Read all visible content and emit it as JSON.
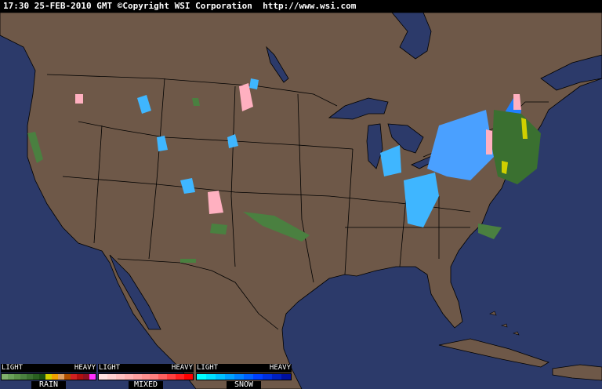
{
  "header": {
    "time": "17:30",
    "date": "25-FEB-2010",
    "zone": "GMT",
    "copyright": "©Copyright WSI Corporation",
    "url": "http://www.wsi.com"
  },
  "colors": {
    "ocean": "#2c3a6a",
    "land": "#6e5848",
    "border": "#000000",
    "lakes": "#2c3a6a"
  },
  "legend": {
    "light": "LIGHT",
    "heavy": "HEAVY",
    "rain": {
      "name": "RAIN",
      "colors": [
        "#7fb06c",
        "#6aa05a",
        "#5a9048",
        "#4a8040",
        "#3a7030",
        "#2a6020",
        "#1a5010",
        "#d0d000",
        "#f0a000",
        "#e0a060",
        "#b05000",
        "#d02020",
        "#b01010",
        "#901020",
        "#ff30ff"
      ]
    },
    "mixed": {
      "name": "MIXED",
      "colors": [
        "#ffe0e0",
        "#ffd0d0",
        "#ffc0c0",
        "#ffb0b0",
        "#ffa0a0",
        "#ff9090",
        "#ff8080",
        "#ff6060",
        "#ff4040",
        "#ff2020",
        "#ff0000"
      ]
    },
    "snow": {
      "name": "SNOW",
      "colors": [
        "#00ffff",
        "#00e0ff",
        "#00c0ff",
        "#00a0ff",
        "#0080ff",
        "#0060ff",
        "#0040ff",
        "#0030e0",
        "#0020c0",
        "#0010a0"
      ]
    }
  }
}
